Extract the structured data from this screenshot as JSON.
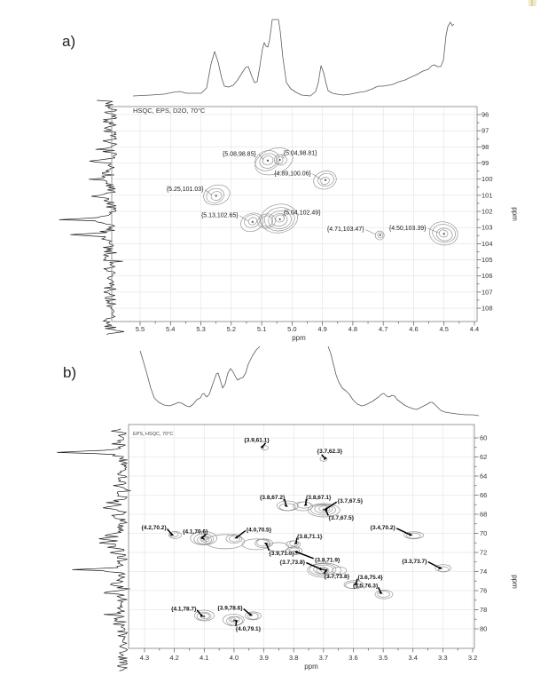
{
  "figure_caption_note": "Two 2D HSQC NMR contour plots with 1D projection traces",
  "artifact_color": "#f1e9cf",
  "chart_data": [
    {
      "type": "scatter",
      "chart_kind": "2D NMR HSQC contour map with 1D projections",
      "panel_label": "a)",
      "title": "HSQC, EPS, D2O, 70°C",
      "xlabel": "ppm",
      "ylabel": "ppm",
      "x_axis": {
        "ticks": [
          "5.5",
          "5.4",
          "5.3",
          "5.2",
          "5.1",
          "5.0",
          "4.9",
          "4.8",
          "4.7",
          "4.6",
          "4.5",
          "4.4"
        ],
        "direction": "decreasing-rightward"
      },
      "y_axis": {
        "ticks": [
          "96",
          "97",
          "98",
          "99",
          "100",
          "101",
          "102",
          "103",
          "104",
          "105",
          "106",
          "107",
          "108"
        ],
        "direction": "increasing-downward",
        "side": "right"
      },
      "grid": true,
      "peaks": [
        {
          "x": 5.08,
          "y": 98.85,
          "label": "{5.08,98.85}"
        },
        {
          "x": 5.04,
          "y": 98.81,
          "label": "{5.04,98.81}"
        },
        {
          "x": 4.89,
          "y": 100.06,
          "label": "{4.89,100.06}"
        },
        {
          "x": 5.25,
          "y": 101.03,
          "label": "{5.25,101.03}"
        },
        {
          "x": 5.13,
          "y": 102.65,
          "label": "{5.13,102.65}"
        },
        {
          "x": 5.04,
          "y": 102.49,
          "label": "{5.04,102.49}"
        },
        {
          "x": 4.71,
          "y": 103.47,
          "label": "{4.71,103.47}"
        },
        {
          "x": 4.5,
          "y": 103.39,
          "label": "{4.50,103.39}"
        }
      ]
    },
    {
      "type": "scatter",
      "chart_kind": "2D NMR HSQC contour map with 1D projections",
      "panel_label": "b)",
      "title": "EPS, HSQC, 70°C",
      "xlabel": "ppm",
      "ylabel": "ppm",
      "x_axis": {
        "ticks": [
          "4.3",
          "4.2",
          "4.1",
          "4.0",
          "3.9",
          "3.8",
          "3.7",
          "3.6",
          "3.5",
          "3.4",
          "3.3",
          "3.2"
        ],
        "direction": "decreasing-rightward"
      },
      "y_axis": {
        "ticks": [
          "60",
          "62",
          "64",
          "66",
          "68",
          "70",
          "72",
          "74",
          "76",
          "78",
          "80"
        ],
        "direction": "increasing-downward",
        "side": "right"
      },
      "grid": true,
      "peaks": [
        {
          "x": 3.9,
          "y": 61.1,
          "label": "{3.9,61.1}"
        },
        {
          "x": 3.7,
          "y": 62.3,
          "label": "{3.7,62.3}"
        },
        {
          "x": 3.8,
          "y": 67.2,
          "label": "{3.8,67.2}"
        },
        {
          "x": 3.8,
          "y": 67.1,
          "label": "{3.8,67.1}"
        },
        {
          "x": 3.7,
          "y": 67.5,
          "label": "{3.7,67.5}"
        },
        {
          "x": 3.7,
          "y": 67.5,
          "label": "{3.7,67.5}"
        },
        {
          "x": 4.2,
          "y": 70.2,
          "label": "{4.2,70.2}"
        },
        {
          "x": 4.1,
          "y": 70.6,
          "label": "{4.1,70.6}"
        },
        {
          "x": 4.0,
          "y": 70.5,
          "label": "{4.0,70.5}"
        },
        {
          "x": 3.4,
          "y": 70.2,
          "label": "{3.4,70.2}"
        },
        {
          "x": 3.8,
          "y": 71.1,
          "label": "{3.8,71.1}"
        },
        {
          "x": 3.9,
          "y": 71.0,
          "label": "{3.9,71.0}"
        },
        {
          "x": 3.8,
          "y": 71.9,
          "label": "{3.8,71.9}"
        },
        {
          "x": 3.7,
          "y": 73.8,
          "label": "{3.7,73.8}"
        },
        {
          "x": 3.3,
          "y": 73.7,
          "label": "{3.3,73.7}"
        },
        {
          "x": 3.7,
          "y": 73.8,
          "label": "{3.7,73.8}"
        },
        {
          "x": 3.6,
          "y": 75.4,
          "label": "{3.6,75.4}"
        },
        {
          "x": 3.5,
          "y": 76.3,
          "label": "{3.5,76.3}"
        },
        {
          "x": 4.1,
          "y": 78.7,
          "label": "{4.1,78.7}"
        },
        {
          "x": 3.9,
          "y": 78.6,
          "label": "{3.9,78.6}"
        },
        {
          "x": 4.0,
          "y": 79.1,
          "label": "{4.0,79.1}"
        }
      ]
    }
  ]
}
